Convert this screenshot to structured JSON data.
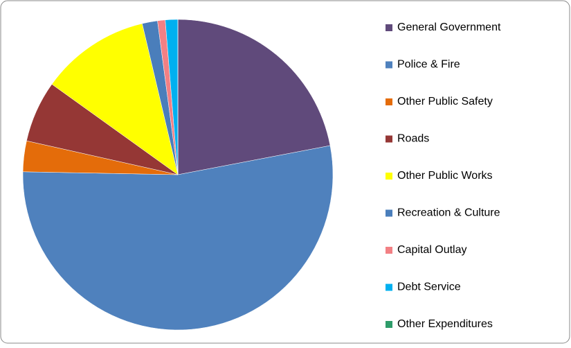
{
  "chart_data": {
    "type": "pie",
    "categories": [
      "General Government",
      "Police & Fire",
      "Other Public Safety",
      "Roads",
      "Other Public Works",
      "Recreation & Culture",
      "Capital Outlay",
      "Debt Service",
      "Other Expenditures"
    ],
    "values": [
      22,
      53.3,
      3.2,
      6.4,
      11.4,
      1.6,
      0.8,
      1.3,
      0
    ],
    "colors": [
      "#604a7b",
      "#4f81bd",
      "#e46c0a",
      "#953735",
      "#ffff00",
      "#4a7ebb",
      "#f28084",
      "#00b0f0",
      "#2e9c6a"
    ],
    "legend": "right"
  }
}
